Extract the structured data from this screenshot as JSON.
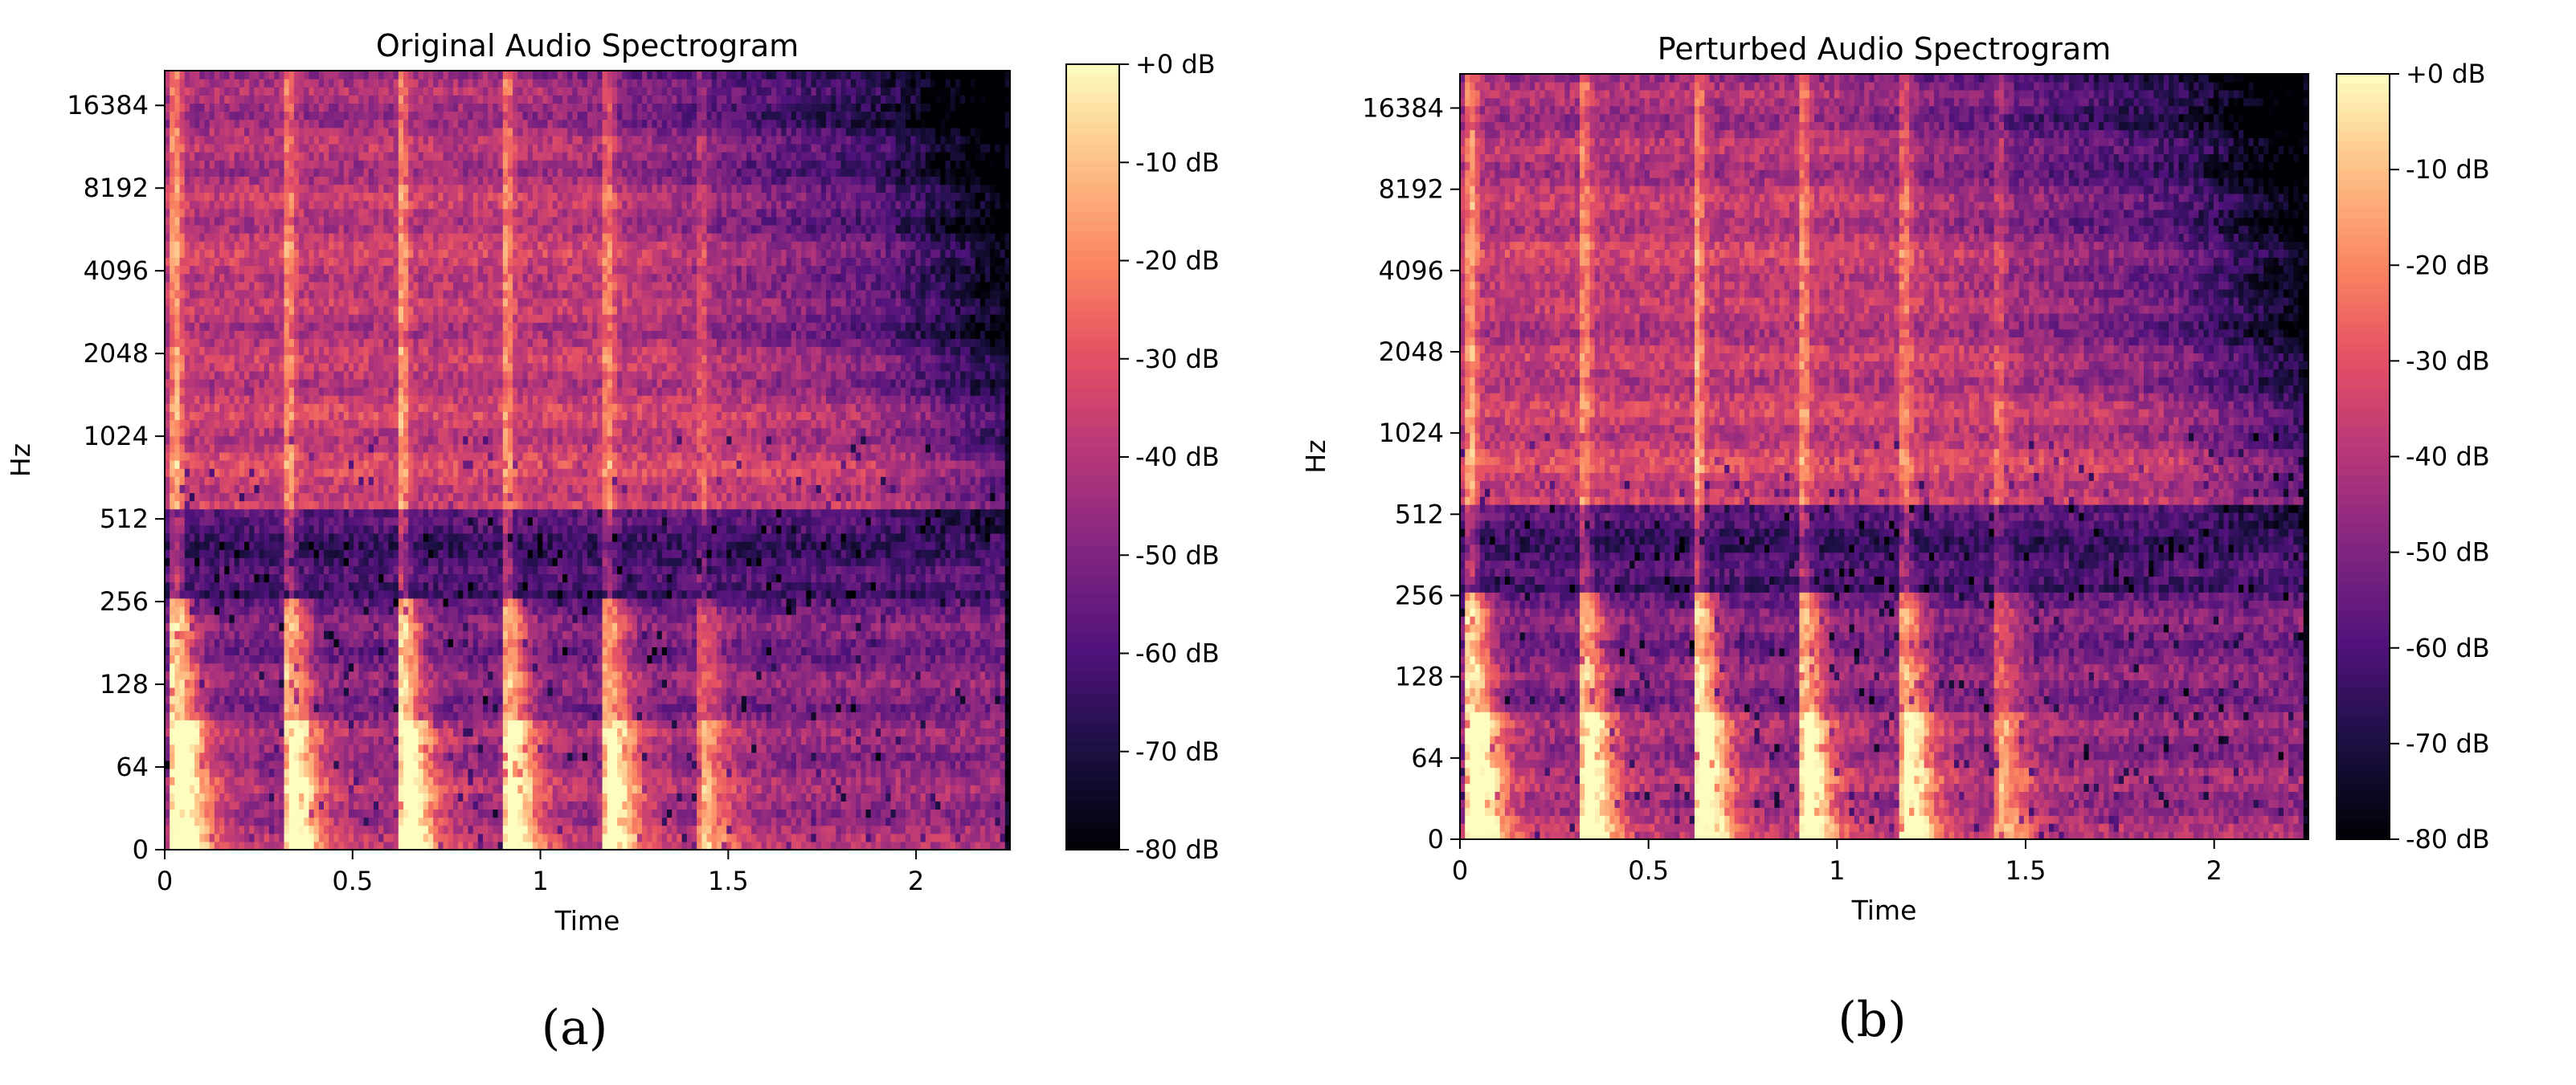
{
  "chart_data": [
    {
      "type": "heatmap",
      "title": "Original Audio Spectrogram",
      "xlabel": "Time",
      "ylabel": "Hz",
      "panel_label": "(a)",
      "xlim": [
        0,
        2.25
      ],
      "xticks": [
        0,
        0.5,
        1,
        1.5,
        2
      ],
      "xtick_labels": [
        "0",
        "0.5",
        "1",
        "1.5",
        "2"
      ],
      "yscale": "log2-symlog",
      "yticks": [
        0,
        64,
        128,
        256,
        512,
        1024,
        2048,
        4096,
        8192,
        16384
      ],
      "ytick_labels": [
        "0",
        "64",
        "128",
        "256",
        "512",
        "1024",
        "2048",
        "4096",
        "8192",
        "16384"
      ],
      "colormap": "magma",
      "color_range_db": [
        -80,
        0
      ],
      "colorbar_ticks": [
        0,
        -10,
        -20,
        -30,
        -40,
        -50,
        -60,
        -70,
        -80
      ],
      "colorbar_tick_labels": [
        "+0 dB",
        "-10 dB",
        "-20 dB",
        "-30 dB",
        "-40 dB",
        "-50 dB",
        "-60 dB",
        "-70 dB",
        "-80 dB"
      ],
      "onsets_s": [
        0.03,
        0.33,
        0.63,
        0.91,
        1.18,
        1.43
      ],
      "onset_strength": [
        1.0,
        0.85,
        1.0,
        0.85,
        0.8,
        0.45
      ],
      "grid": false
    },
    {
      "type": "heatmap",
      "title": "Perturbed Audio Spectrogram",
      "xlabel": "Time",
      "ylabel": "Hz",
      "panel_label": "(b)",
      "xlim": [
        0,
        2.25
      ],
      "xticks": [
        0,
        0.5,
        1,
        1.5,
        2
      ],
      "xtick_labels": [
        "0",
        "0.5",
        "1",
        "1.5",
        "2"
      ],
      "yscale": "log2-symlog",
      "yticks": [
        0,
        64,
        128,
        256,
        512,
        1024,
        2048,
        4096,
        8192,
        16384
      ],
      "ytick_labels": [
        "0",
        "64",
        "128",
        "256",
        "512",
        "1024",
        "2048",
        "4096",
        "8192",
        "16384"
      ],
      "colormap": "magma",
      "color_range_db": [
        -80,
        0
      ],
      "colorbar_ticks": [
        0,
        -10,
        -20,
        -30,
        -40,
        -50,
        -60,
        -70,
        -80
      ],
      "colorbar_tick_labels": [
        "+0 dB",
        "-10 dB",
        "-20 dB",
        "-30 dB",
        "-40 dB",
        "-50 dB",
        "-60 dB",
        "-70 dB",
        "-80 dB"
      ],
      "onsets_s": [
        0.03,
        0.33,
        0.63,
        0.91,
        1.18,
        1.43
      ],
      "onset_strength": [
        1.0,
        0.85,
        1.0,
        0.85,
        0.8,
        0.45
      ],
      "grid": false
    }
  ]
}
